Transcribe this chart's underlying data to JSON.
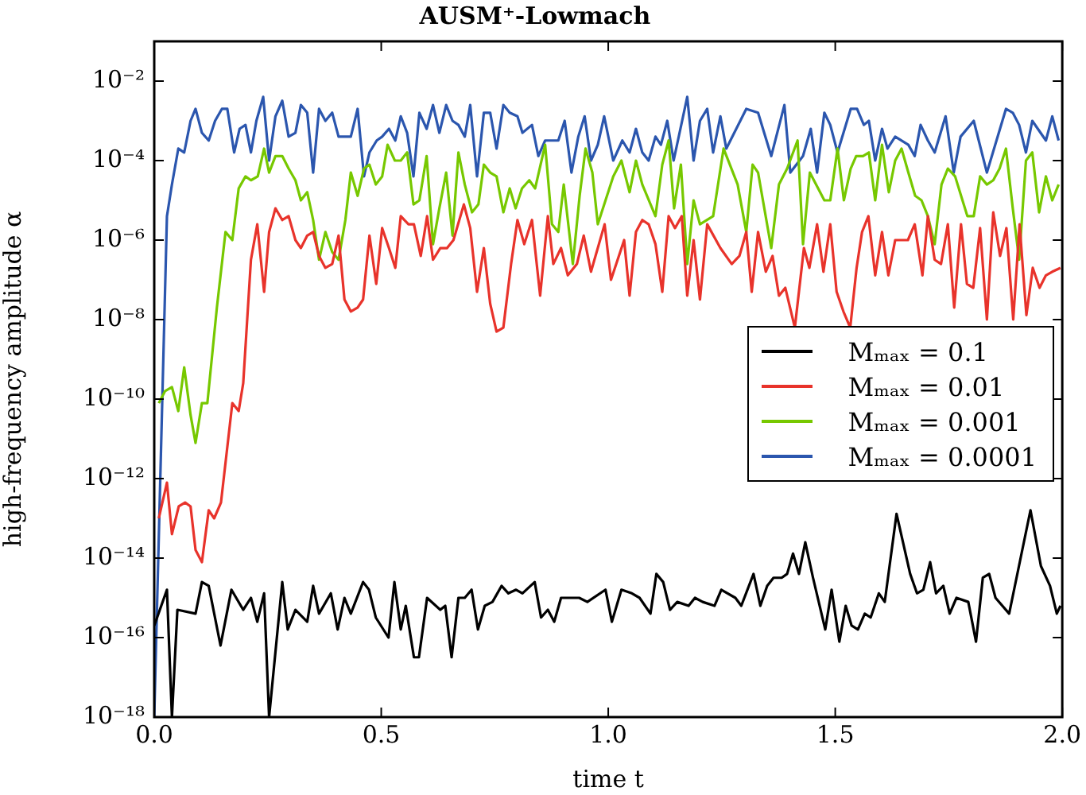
{
  "chart_data": {
    "type": "line",
    "title": "AUSM⁺-Lowmach",
    "xlabel": "time t",
    "ylabel": "high-frequency amplitude α",
    "log": "y",
    "grid": false,
    "legend": "right",
    "marker": "none",
    "line_style": "solid",
    "xlim": [
      0,
      2
    ],
    "xticks": [
      {
        "value": 0,
        "label": "0.0"
      },
      {
        "value": 0.5,
        "label": "0.5"
      },
      {
        "value": 1,
        "label": "1.0"
      },
      {
        "value": 1.5,
        "label": "1.5"
      },
      {
        "value": 2,
        "label": "2.0"
      }
    ],
    "ylim": [
      1e-18,
      0.1
    ],
    "yticks": [
      {
        "value": 1e-18,
        "label": "10⁻¹⁸"
      },
      {
        "value": 1e-16,
        "label": "10⁻¹⁶"
      },
      {
        "value": 1e-14,
        "label": "10⁻¹⁴"
      },
      {
        "value": 1e-12,
        "label": "10⁻¹²"
      },
      {
        "value": 1e-10,
        "label": "10⁻¹⁰"
      },
      {
        "value": 1e-08,
        "label": "10⁻⁸"
      },
      {
        "value": 1e-06,
        "label": "10⁻⁶"
      },
      {
        "value": 0.0001,
        "label": "10⁻⁴"
      },
      {
        "value": 0.01,
        "label": "10⁻²"
      }
    ],
    "series": [
      {
        "name": "Mₘₐₓ = 0.1",
        "color": "#000000",
        "x": [
          0,
          0.028,
          0.039,
          0.051,
          0.091,
          0.105,
          0.12,
          0.146,
          0.17,
          0.196,
          0.213,
          0.227,
          0.242,
          0.253,
          0.282,
          0.294,
          0.311,
          0.337,
          0.35,
          0.363,
          0.389,
          0.404,
          0.419,
          0.433,
          0.46,
          0.473,
          0.488,
          0.516,
          0.529,
          0.543,
          0.554,
          0.572,
          0.583,
          0.601,
          0.63,
          0.641,
          0.655,
          0.67,
          0.684,
          0.699,
          0.713,
          0.728,
          0.745,
          0.765,
          0.78,
          0.797,
          0.811,
          0.838,
          0.852,
          0.867,
          0.881,
          0.896,
          0.936,
          0.954,
          0.994,
          1.008,
          1.029,
          1.052,
          1.069,
          1.093,
          1.106,
          1.121,
          1.136,
          1.152,
          1.177,
          1.191,
          1.208,
          1.234,
          1.249,
          1.28,
          1.293,
          1.32,
          1.335,
          1.35,
          1.364,
          1.382,
          1.394,
          1.407,
          1.42,
          1.434,
          1.451,
          1.478,
          1.492,
          1.509,
          1.523,
          1.536,
          1.55,
          1.565,
          1.578,
          1.596,
          1.609,
          1.635,
          1.665,
          1.68,
          1.694,
          1.709,
          1.722,
          1.738,
          1.752,
          1.767,
          1.793,
          1.81,
          1.825,
          1.839,
          1.853,
          1.883,
          1.93,
          1.953,
          1.973,
          1.988,
          1.996
        ],
        "values": [
          2e-16,
          1.6e-15,
          1e-18,
          5e-16,
          4e-16,
          2.5e-15,
          2e-15,
          6.3e-17,
          1.6e-15,
          5e-16,
          1e-15,
          2.5e-16,
          1.3e-15,
          1e-18,
          2.5e-15,
          1.6e-16,
          5e-16,
          2.5e-16,
          2e-15,
          4e-16,
          1.3e-15,
          1.6e-16,
          1e-15,
          4e-16,
          2.5e-15,
          1.6e-15,
          3.2e-16,
          1e-16,
          2.5e-15,
          1.6e-16,
          6.3e-16,
          3.2e-17,
          3.2e-17,
          1e-15,
          5e-16,
          6.3e-16,
          3.2e-17,
          1e-15,
          1e-15,
          1.6e-15,
          1.6e-16,
          6.3e-16,
          7.9e-16,
          2e-15,
          1.3e-15,
          1.6e-15,
          1.3e-15,
          2.5e-15,
          3.2e-16,
          5e-16,
          2.5e-16,
          1e-15,
          1e-15,
          7.9e-16,
          1.6e-15,
          2.5e-16,
          1.6e-15,
          1.3e-15,
          1e-15,
          4e-16,
          4e-15,
          2.5e-15,
          5e-16,
          7.9e-16,
          6.3e-16,
          1e-15,
          7.9e-16,
          6.3e-16,
          1.6e-15,
          1e-15,
          6.3e-16,
          4e-15,
          6.3e-16,
          2e-15,
          3.2e-15,
          3.2e-15,
          4e-15,
          1.3e-14,
          4e-15,
          2.5e-14,
          3.2e-15,
          1.6e-16,
          1.6e-15,
          7.9e-17,
          6.3e-16,
          2e-16,
          1.6e-16,
          4e-16,
          3.2e-16,
          1.3e-15,
          7.9e-16,
          1.3e-13,
          4e-15,
          1.3e-15,
          1.6e-15,
          7.9e-15,
          1.3e-15,
          2e-15,
          4e-16,
          1e-15,
          7.9e-16,
          7.9e-17,
          3.2e-15,
          4e-15,
          1e-15,
          4e-16,
          1.6e-13,
          6.3e-15,
          2e-15,
          4e-16,
          6.3e-16
        ]
      },
      {
        "name": "Mₘₐₓ = 0.01",
        "color": "#e8332b",
        "x": [
          0.01,
          0.028,
          0.039,
          0.054,
          0.068,
          0.08,
          0.091,
          0.105,
          0.12,
          0.132,
          0.147,
          0.172,
          0.186,
          0.196,
          0.213,
          0.227,
          0.242,
          0.253,
          0.267,
          0.282,
          0.296,
          0.311,
          0.323,
          0.337,
          0.35,
          0.363,
          0.377,
          0.392,
          0.406,
          0.419,
          0.433,
          0.448,
          0.46,
          0.474,
          0.489,
          0.502,
          0.517,
          0.531,
          0.543,
          0.56,
          0.572,
          0.587,
          0.601,
          0.614,
          0.63,
          0.645,
          0.659,
          0.682,
          0.696,
          0.711,
          0.726,
          0.74,
          0.754,
          0.769,
          0.786,
          0.8,
          0.815,
          0.832,
          0.85,
          0.867,
          0.879,
          0.896,
          0.911,
          0.931,
          0.946,
          0.962,
          0.992,
          1.006,
          1.035,
          1.047,
          1.061,
          1.075,
          1.089,
          1.104,
          1.119,
          1.133,
          1.147,
          1.162,
          1.174,
          1.188,
          1.202,
          1.218,
          1.247,
          1.272,
          1.289,
          1.304,
          1.316,
          1.33,
          1.347,
          1.362,
          1.376,
          1.39,
          1.411,
          1.431,
          1.443,
          1.46,
          1.474,
          1.489,
          1.503,
          1.518,
          1.533,
          1.547,
          1.559,
          1.573,
          1.588,
          1.603,
          1.617,
          1.632,
          1.66,
          1.675,
          1.692,
          1.704,
          1.719,
          1.733,
          1.748,
          1.762,
          1.777,
          1.79,
          1.804,
          1.819,
          1.834,
          1.848,
          1.863,
          1.877,
          1.892,
          1.906,
          1.921,
          1.935,
          1.95,
          1.964,
          1.978,
          1.996
        ],
        "values": [
          1e-13,
          7.9e-13,
          4e-14,
          2e-13,
          2.5e-13,
          2e-13,
          1.6e-14,
          7.9e-15,
          1.6e-13,
          1e-13,
          2.5e-13,
          7.9e-11,
          5e-11,
          2.5e-10,
          3.2e-07,
          2.5e-06,
          5e-08,
          1.6e-06,
          6.3e-06,
          3.2e-06,
          4e-06,
          1e-06,
          6.3e-07,
          1.3e-06,
          1.6e-06,
          4e-07,
          2e-07,
          2.5e-07,
          1.3e-06,
          3.2e-08,
          1.6e-08,
          2e-08,
          3.2e-08,
          1.3e-06,
          7.9e-08,
          2e-06,
          6.3e-07,
          2e-07,
          4e-06,
          2.5e-06,
          2.5e-06,
          4e-07,
          4e-06,
          3.2e-07,
          6.3e-07,
          6.3e-07,
          1e-06,
          7.9e-06,
          2e-06,
          5e-08,
          6.3e-07,
          2.5e-08,
          5e-09,
          6.3e-09,
          2.5e-07,
          3.2e-06,
          7.9e-07,
          3.2e-06,
          4e-08,
          4e-06,
          2.5e-07,
          6.3e-07,
          1.3e-07,
          2.5e-07,
          1.3e-06,
          1.6e-07,
          2.5e-06,
          1e-07,
          1e-06,
          4e-08,
          1.6e-06,
          3.2e-06,
          2.5e-06,
          7.9e-07,
          5e-08,
          4e-06,
          2e-06,
          4e-06,
          4e-08,
          1e-06,
          3.2e-08,
          2.5e-06,
          6.3e-07,
          2.5e-07,
          4e-07,
          1.6e-06,
          5e-08,
          1.6e-06,
          1.6e-07,
          4e-07,
          4e-08,
          6.3e-08,
          6.3e-09,
          6.3e-07,
          2e-07,
          2.5e-06,
          1.6e-07,
          2.5e-06,
          5e-08,
          1.6e-08,
          6.3e-09,
          2e-07,
          1.6e-06,
          4e-06,
          1.3e-07,
          1.6e-06,
          1.3e-07,
          1e-06,
          1e-06,
          2.5e-06,
          1.3e-07,
          4e-06,
          3.2e-07,
          2.5e-07,
          2.5e-06,
          2e-08,
          2.5e-06,
          7.9e-08,
          6.3e-08,
          2e-06,
          1e-08,
          5e-06,
          4e-07,
          2e-06,
          1e-08,
          2.5e-06,
          1.3e-08,
          2e-07,
          6.3e-08,
          1.3e-07,
          1.6e-07,
          2e-07
        ]
      },
      {
        "name": "Mₘₐₓ = 0.001",
        "color": "#77c800",
        "x": [
          0.01,
          0.024,
          0.039,
          0.053,
          0.066,
          0.08,
          0.091,
          0.105,
          0.117,
          0.138,
          0.157,
          0.172,
          0.186,
          0.201,
          0.213,
          0.228,
          0.242,
          0.253,
          0.267,
          0.282,
          0.296,
          0.311,
          0.323,
          0.337,
          0.35,
          0.363,
          0.377,
          0.392,
          0.406,
          0.421,
          0.433,
          0.448,
          0.462,
          0.474,
          0.488,
          0.502,
          0.514,
          0.53,
          0.543,
          0.557,
          0.571,
          0.584,
          0.6,
          0.614,
          0.628,
          0.643,
          0.657,
          0.67,
          0.684,
          0.7,
          0.714,
          0.726,
          0.74,
          0.754,
          0.769,
          0.783,
          0.796,
          0.81,
          0.826,
          0.839,
          0.861,
          0.876,
          0.89,
          0.902,
          0.922,
          0.937,
          0.95,
          0.965,
          0.977,
          0.994,
          1.011,
          1.029,
          1.047,
          1.061,
          1.075,
          1.104,
          1.119,
          1.133,
          1.145,
          1.16,
          1.174,
          1.188,
          1.202,
          1.231,
          1.254,
          1.285,
          1.304,
          1.318,
          1.33,
          1.359,
          1.376,
          1.394,
          1.417,
          1.429,
          1.444,
          1.476,
          1.489,
          1.505,
          1.519,
          1.534,
          1.546,
          1.561,
          1.574,
          1.588,
          1.603,
          1.618,
          1.632,
          1.646,
          1.661,
          1.676,
          1.69,
          1.704,
          1.719,
          1.734,
          1.748,
          1.764,
          1.791,
          1.805,
          1.819,
          1.834,
          1.848,
          1.862,
          1.876,
          1.891,
          1.905,
          1.92,
          1.934,
          1.949,
          1.964,
          1.978,
          1.992
        ],
        "values": [
          7.9e-11,
          1.6e-10,
          2e-10,
          5e-11,
          6.3e-10,
          4e-11,
          7.9e-12,
          7.9e-11,
          7.9e-11,
          2e-08,
          1.6e-06,
          1e-06,
          2e-05,
          4e-05,
          3.2e-05,
          4e-05,
          0.0002,
          5e-05,
          0.00013,
          0.00013,
          6.3e-05,
          3.2e-05,
          1e-05,
          1.6e-05,
          3.2e-06,
          3.2e-07,
          1.6e-06,
          5e-07,
          3.2e-07,
          3.2e-06,
          5e-05,
          1.3e-05,
          6.3e-05,
          7.9e-05,
          2.5e-05,
          4e-05,
          0.00025,
          0.0001,
          0.0001,
          0.00016,
          7.9e-06,
          1e-05,
          0.00013,
          7.9e-07,
          6.3e-06,
          5e-05,
          1.3e-06,
          0.00016,
          2.5e-05,
          5e-06,
          7.9e-06,
          7.9e-05,
          5e-05,
          4e-05,
          5e-06,
          2e-05,
          6.3e-06,
          2e-05,
          3.2e-05,
          2e-05,
          0.00025,
          2.5e-06,
          1.6e-06,
          2.5e-05,
          2.5e-07,
          1.3e-05,
          0.0002,
          5e-05,
          2.5e-06,
          1e-05,
          4e-05,
          0.0001,
          1.6e-05,
          0.0001,
          2.5e-05,
          4e-06,
          7.9e-05,
          0.00032,
          6.3e-06,
          7.9e-05,
          2.5e-07,
          1e-05,
          2.5e-06,
          4e-06,
          0.0002,
          2.5e-05,
          1.6e-06,
          7.9e-05,
          5e-05,
          6.3e-07,
          2.5e-05,
          6.3e-05,
          0.00032,
          7.9e-07,
          5e-05,
          1e-05,
          1e-05,
          0.0002,
          1e-05,
          6.3e-05,
          0.00013,
          0.00013,
          0.00016,
          1e-05,
          0.00025,
          1.6e-05,
          0.0001,
          0.0002,
          5e-05,
          1.3e-05,
          1e-05,
          4e-06,
          7.9e-07,
          2.5e-05,
          6.3e-05,
          4e-05,
          4e-06,
          4e-06,
          4e-05,
          2.5e-05,
          3.2e-05,
          6.3e-05,
          0.0002,
          6.3e-06,
          3.2e-07,
          0.0001,
          0.00016,
          5e-06,
          4e-05,
          1e-05,
          2.5e-05
        ]
      },
      {
        "name": "Mₘₐₓ = 0.0001",
        "color": "#2b56ae",
        "x": [
          0,
          0.028,
          0.039,
          0.053,
          0.066,
          0.08,
          0.091,
          0.105,
          0.12,
          0.134,
          0.149,
          0.161,
          0.176,
          0.188,
          0.201,
          0.213,
          0.225,
          0.24,
          0.253,
          0.267,
          0.282,
          0.296,
          0.311,
          0.323,
          0.337,
          0.35,
          0.363,
          0.377,
          0.392,
          0.406,
          0.433,
          0.448,
          0.462,
          0.474,
          0.49,
          0.502,
          0.517,
          0.531,
          0.543,
          0.557,
          0.571,
          0.584,
          0.6,
          0.614,
          0.628,
          0.643,
          0.657,
          0.67,
          0.684,
          0.696,
          0.711,
          0.726,
          0.74,
          0.754,
          0.769,
          0.783,
          0.8,
          0.811,
          0.832,
          0.846,
          0.861,
          0.878,
          0.89,
          0.904,
          0.919,
          0.934,
          0.948,
          0.962,
          0.977,
          0.991,
          1.011,
          1.031,
          1.047,
          1.061,
          1.075,
          1.089,
          1.104,
          1.116,
          1.13,
          1.144,
          1.174,
          1.188,
          1.202,
          1.218,
          1.231,
          1.247,
          1.26,
          1.304,
          1.33,
          1.359,
          1.388,
          1.401,
          1.429,
          1.446,
          1.46,
          1.476,
          1.489,
          1.505,
          1.534,
          1.548,
          1.563,
          1.574,
          1.588,
          1.603,
          1.615,
          1.632,
          1.661,
          1.675,
          1.688,
          1.704,
          1.719,
          1.743,
          1.761,
          1.776,
          1.805,
          1.834,
          1.876,
          1.891,
          1.905,
          1.92,
          1.934,
          1.964,
          1.978,
          1.992
        ],
        "values": [
          1e-18,
          4e-06,
          2.5e-05,
          0.0002,
          0.00016,
          0.001,
          0.002,
          0.0005,
          0.00032,
          0.001,
          0.002,
          0.002,
          0.00016,
          0.00063,
          0.00079,
          0.00016,
          0.001,
          0.004,
          0.0001,
          0.0013,
          0.0032,
          0.0004,
          0.0005,
          0.0025,
          0.0016,
          5e-05,
          0.002,
          0.001,
          0.0016,
          0.0004,
          0.0004,
          0.002,
          4e-05,
          0.00016,
          0.00032,
          0.0004,
          0.00063,
          0.00032,
          0.0013,
          0.0005,
          4e-05,
          0.0016,
          0.00063,
          0.0025,
          0.0005,
          0.0025,
          0.001,
          0.00079,
          0.0004,
          0.0025,
          4e-05,
          0.0016,
          0.0016,
          0.0002,
          0.0025,
          0.0016,
          0.0013,
          0.0005,
          0.00079,
          0.00013,
          0.00032,
          0.00032,
          0.00032,
          0.001,
          5e-05,
          0.0004,
          0.0013,
          0.0001,
          0.00025,
          0.0013,
          0.0001,
          0.00032,
          0.00016,
          0.00063,
          0.00016,
          0.0001,
          0.0004,
          0.00025,
          0.001,
          0.0001,
          0.004,
          0.0001,
          0.001,
          0.002,
          0.00016,
          0.0013,
          0.0002,
          0.002,
          0.0016,
          0.00013,
          0.0025,
          5e-05,
          0.00013,
          0.00063,
          5e-05,
          0.0016,
          0.00079,
          0.00016,
          0.002,
          0.002,
          0.00079,
          0.001,
          0.0001,
          0.00063,
          0.0002,
          0.0004,
          0.00025,
          0.00013,
          0.00079,
          0.00032,
          0.00016,
          0.0013,
          5e-05,
          0.0004,
          0.001,
          5e-05,
          0.002,
          0.0016,
          0.00079,
          0.00016,
          0.001,
          0.00032,
          0.0013,
          0.00032
        ]
      }
    ]
  }
}
